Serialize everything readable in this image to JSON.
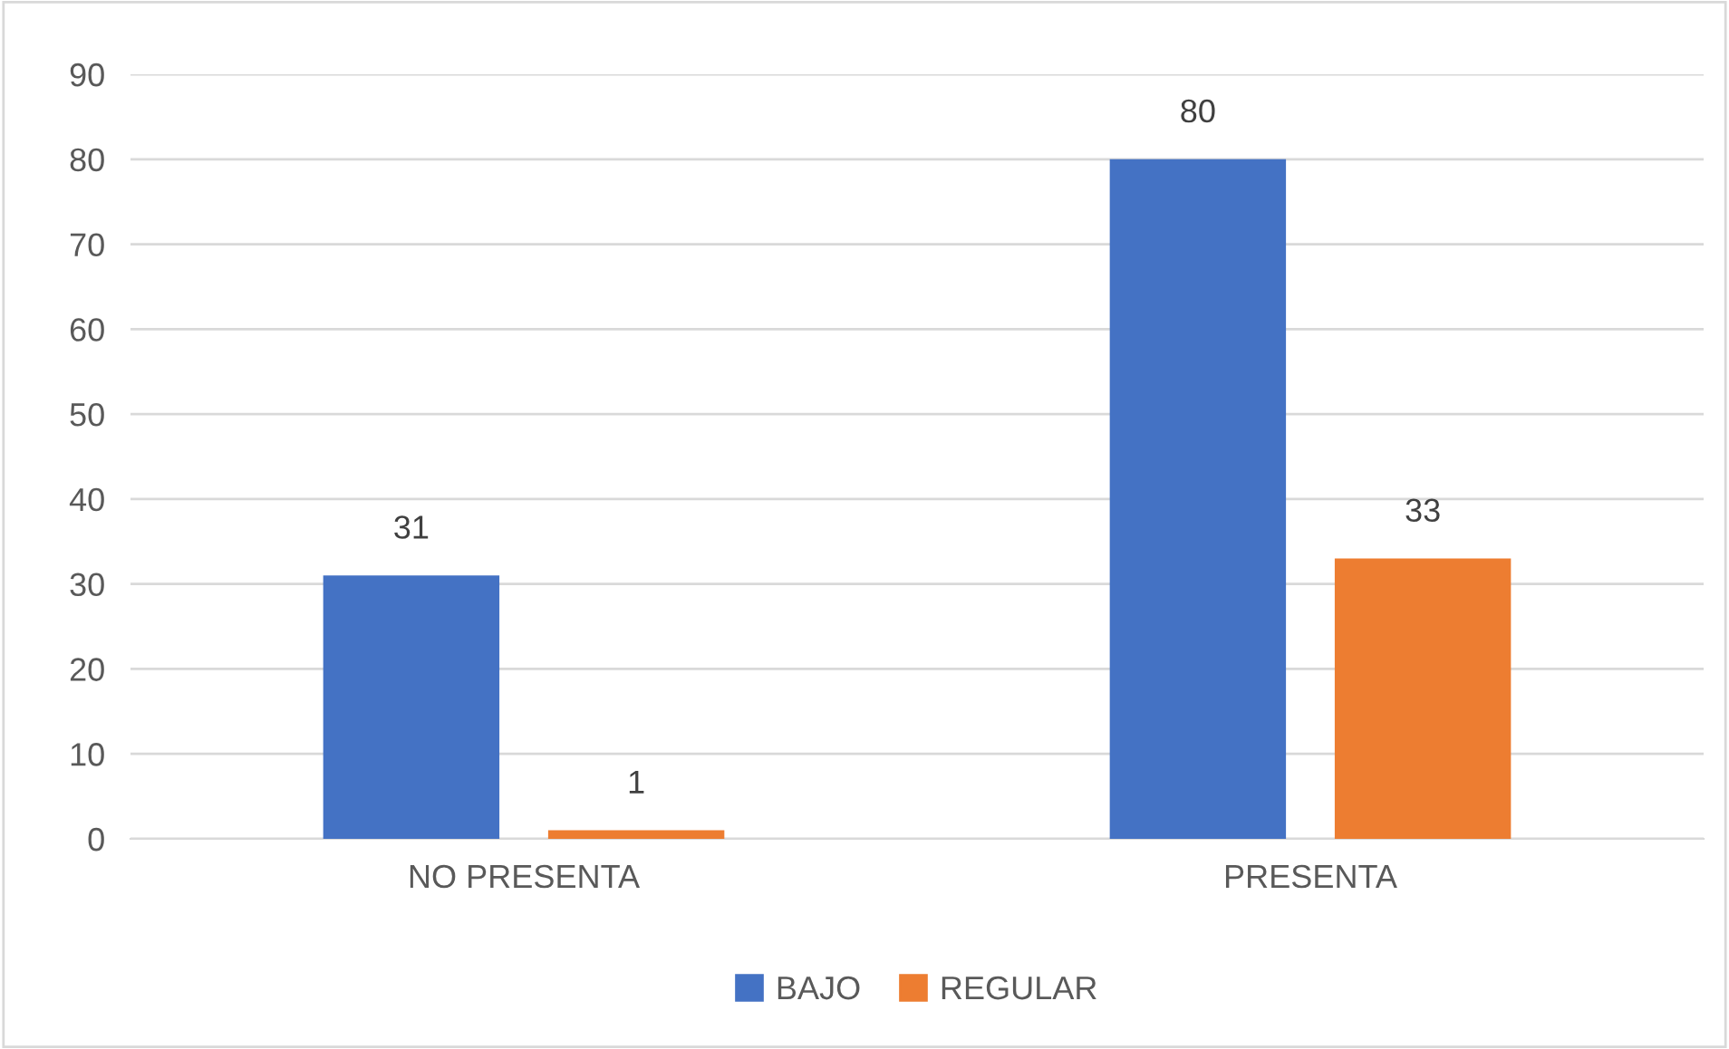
{
  "chart_data": {
    "type": "bar",
    "categories": [
      "NO PRESENTA",
      "PRESENTA"
    ],
    "series": [
      {
        "name": "BAJO",
        "color": "#4472c4",
        "values": [
          31,
          80
        ]
      },
      {
        "name": "REGULAR",
        "color": "#ed7d31",
        "values": [
          1,
          33
        ]
      }
    ],
    "ylim": [
      0,
      90
    ],
    "yticks": [
      0,
      10,
      20,
      30,
      40,
      50,
      60,
      70,
      80,
      90
    ],
    "grid": "y",
    "legend": "bottom",
    "data_labels": true
  }
}
